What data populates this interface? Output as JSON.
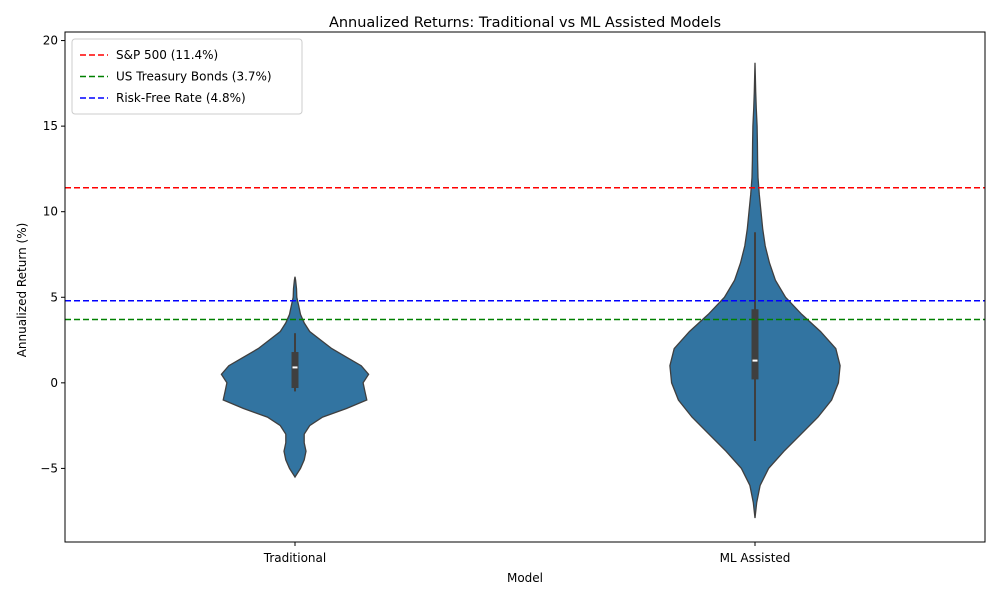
{
  "chart_data": {
    "type": "violin",
    "title": "Annualized Returns: Traditional vs ML Assisted Models",
    "xlabel": "Model",
    "ylabel": "Annualized Return (%)",
    "ylim": [
      -9.3,
      20.5
    ],
    "yticks": [
      -5,
      0,
      5,
      10,
      15,
      20
    ],
    "yticklabels": [
      "−5",
      "0",
      "5",
      "10",
      "15",
      "20"
    ],
    "grid": false,
    "legend_position": "top-left",
    "violin_color": "#3274a1",
    "categories": [
      "Traditional",
      "ML Assisted"
    ],
    "series": [
      {
        "category": "Traditional",
        "max_half_width": 0.4,
        "profile": [
          [
            -5.5,
            0.0
          ],
          [
            -5.0,
            0.03
          ],
          [
            -4.5,
            0.05
          ],
          [
            -4.0,
            0.06
          ],
          [
            -3.5,
            0.05
          ],
          [
            -3.0,
            0.05
          ],
          [
            -2.5,
            0.08
          ],
          [
            -2.0,
            0.15
          ],
          [
            -1.5,
            0.28
          ],
          [
            -1.0,
            0.39
          ],
          [
            -0.5,
            0.38
          ],
          [
            0.0,
            0.37
          ],
          [
            0.5,
            0.4
          ],
          [
            1.0,
            0.36
          ],
          [
            1.5,
            0.28
          ],
          [
            2.0,
            0.2
          ],
          [
            2.5,
            0.14
          ],
          [
            3.0,
            0.08
          ],
          [
            3.5,
            0.05
          ],
          [
            4.0,
            0.03
          ],
          [
            4.5,
            0.02
          ],
          [
            5.0,
            0.01
          ],
          [
            5.5,
            0.008
          ],
          [
            6.0,
            0.003
          ],
          [
            6.2,
            0.0
          ]
        ],
        "q1": -0.3,
        "median": 0.9,
        "q3": 1.8,
        "whisker_low": -0.5,
        "whisker_high": 2.9
      },
      {
        "category": "ML Assisted",
        "max_half_width": 0.185,
        "profile": [
          [
            -7.9,
            0.0
          ],
          [
            -7.0,
            0.02
          ],
          [
            -6.0,
            0.06
          ],
          [
            -5.0,
            0.16
          ],
          [
            -4.0,
            0.34
          ],
          [
            -3.0,
            0.54
          ],
          [
            -2.0,
            0.74
          ],
          [
            -1.0,
            0.9
          ],
          [
            0.0,
            0.98
          ],
          [
            1.0,
            1.0
          ],
          [
            2.0,
            0.95
          ],
          [
            3.0,
            0.77
          ],
          [
            4.0,
            0.55
          ],
          [
            5.0,
            0.36
          ],
          [
            6.0,
            0.24
          ],
          [
            7.0,
            0.17
          ],
          [
            8.0,
            0.12
          ],
          [
            9.0,
            0.09
          ],
          [
            10.0,
            0.07
          ],
          [
            11.0,
            0.05
          ],
          [
            12.0,
            0.035
          ],
          [
            13.0,
            0.03
          ],
          [
            14.0,
            0.028
          ],
          [
            15.0,
            0.025
          ],
          [
            16.0,
            0.015
          ],
          [
            17.0,
            0.008
          ],
          [
            18.0,
            0.003
          ],
          [
            18.7,
            0.0
          ]
        ],
        "q1": 0.2,
        "median": 1.3,
        "q3": 4.3,
        "whisker_low": -3.4,
        "whisker_high": 8.8
      }
    ],
    "reference_lines": [
      {
        "label": "S&P 500 (11.4%)",
        "value": 11.4,
        "color": "#ff0000",
        "style": "dashed"
      },
      {
        "label": "US Treasury Bonds (3.7%)",
        "value": 3.7,
        "color": "#008000",
        "style": "dashed"
      },
      {
        "label": "Risk-Free Rate (4.8%)",
        "value": 4.8,
        "color": "#0000ff",
        "style": "dashed"
      }
    ]
  }
}
